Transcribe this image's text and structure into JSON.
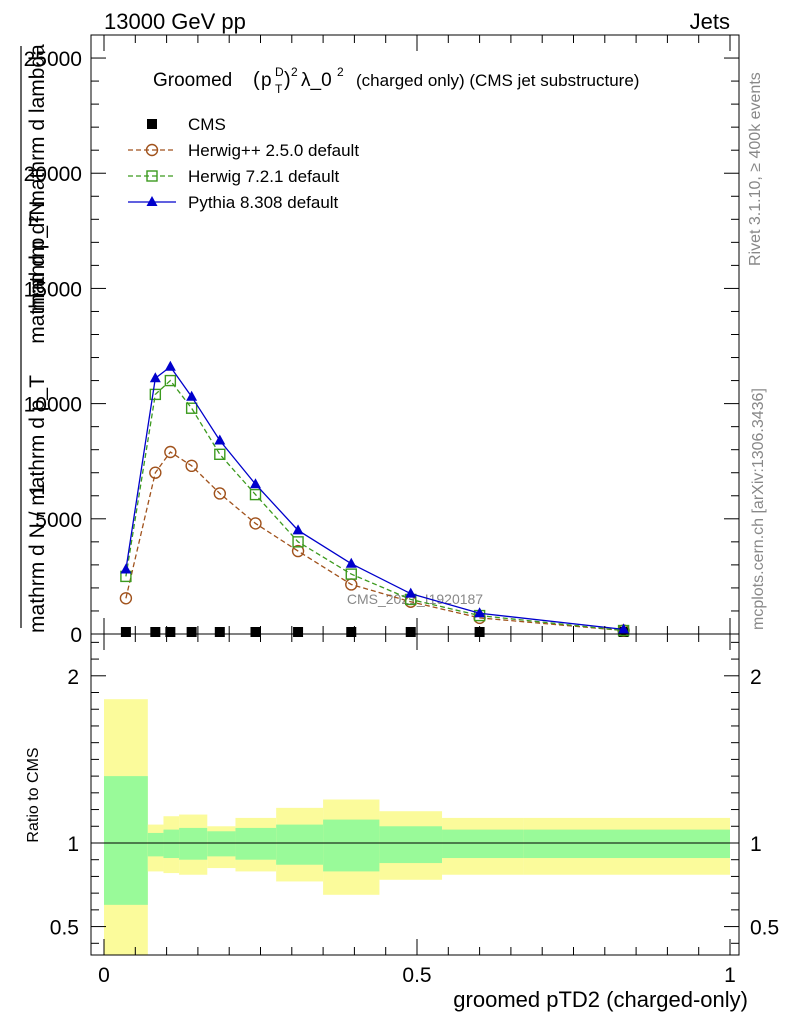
{
  "header": {
    "left": "13000 GeV pp",
    "right": "Jets"
  },
  "side_labels": {
    "rivet": "Rivet 3.1.10, ≥ 400k events",
    "mcplots": "mcplots.cern.ch [arXiv:1306.3436]"
  },
  "watermark": "CMS_2021_I1920187",
  "colors": {
    "cms": "#000000",
    "herwig25": "#a0521c",
    "herwig72": "#3c9a1e",
    "pythia": "#0000cc",
    "band_inner": "#99fa99",
    "band_outer": "#fbfb9b"
  },
  "chart_data": [
    {
      "type": "line",
      "title": "Groomed (p_T^D)^2 λ_0^2 (charged only) (CMS jet substructure)",
      "title_parts": {
        "pre": "Groomed",
        "p": "p",
        "sup_D": "D",
        "sub_T": "T",
        "sup_2": "2",
        "lambda": "λ_0",
        "sup_2b": "2",
        "post": "(charged only) (CMS jet substructure)"
      },
      "ylabel": {
        "frac_top": "mathrm d²N",
        "frac_bottom": "mathrm d p_T mathrm d lambda",
        "sub_T": "T",
        "lead_top": "1",
        "lead_bottom": "mathrm d N / mathrm d p_T"
      },
      "xlim": [
        0,
        1
      ],
      "ylim": [
        0,
        26000
      ],
      "yticks": [
        0,
        5000,
        10000,
        15000,
        20000,
        25000
      ],
      "ytick_labels": [
        "0",
        "5000",
        "10000",
        "15000",
        "20000",
        "25000"
      ],
      "legend": [
        "CMS",
        "Herwig++ 2.5.0 default",
        "Herwig 7.2.1 default",
        "Pythia 8.308 default"
      ],
      "legend_position": "top-left",
      "series": [
        {
          "name": "CMS",
          "x": [
            0.035,
            0.082,
            0.106,
            0.14,
            0.185,
            0.242,
            0.31,
            0.395,
            0.49,
            0.6,
            0.83
          ],
          "y": [
            0,
            0,
            0,
            0,
            0,
            0,
            0,
            0,
            0,
            0,
            0
          ]
        },
        {
          "name": "Herwig++ 2.5.0 default",
          "x": [
            0.035,
            0.082,
            0.106,
            0.14,
            0.185,
            0.242,
            0.31,
            0.395,
            0.49,
            0.6,
            0.83
          ],
          "y": [
            1550,
            7000,
            7900,
            7300,
            6100,
            4800,
            3600,
            2150,
            1400,
            700,
            150
          ]
        },
        {
          "name": "Herwig 7.2.1 default",
          "x": [
            0.035,
            0.082,
            0.106,
            0.14,
            0.185,
            0.242,
            0.31,
            0.395,
            0.49,
            0.6,
            0.83
          ],
          "y": [
            2500,
            10400,
            11000,
            9800,
            7800,
            6050,
            4000,
            2600,
            1500,
            800,
            150
          ]
        },
        {
          "name": "Pythia 8.308 default",
          "x": [
            0.035,
            0.082,
            0.106,
            0.14,
            0.185,
            0.242,
            0.31,
            0.395,
            0.49,
            0.6,
            0.83
          ],
          "y": [
            2800,
            11100,
            11600,
            10300,
            8400,
            6500,
            4500,
            3050,
            1750,
            900,
            200
          ]
        }
      ]
    },
    {
      "type": "area",
      "ylabel": "Ratio to CMS",
      "xlabel": "groomed pTD2 (charged-only)",
      "xlim": [
        0,
        1
      ],
      "ylim": [
        0.33,
        2.25
      ],
      "yticks": [
        0.5,
        1,
        2
      ],
      "ytick_labels": [
        "0.5",
        "1",
        "2"
      ],
      "xticks": [
        0,
        0.5,
        1
      ],
      "xtick_labels": [
        "0",
        "0.5",
        "1"
      ],
      "reference_line": 1,
      "bins": [
        0,
        0.07,
        0.095,
        0.12,
        0.165,
        0.21,
        0.275,
        0.35,
        0.44,
        0.54,
        0.67,
        1.0
      ],
      "inner_band": {
        "low": [
          0.63,
          0.92,
          0.91,
          0.9,
          0.92,
          0.9,
          0.87,
          0.83,
          0.88,
          0.91,
          0.91
        ],
        "high": [
          1.4,
          1.06,
          1.08,
          1.09,
          1.07,
          1.09,
          1.11,
          1.14,
          1.1,
          1.08,
          1.08
        ]
      },
      "outer_band": {
        "low": [
          0.33,
          0.83,
          0.82,
          0.81,
          0.85,
          0.83,
          0.77,
          0.69,
          0.78,
          0.81,
          0.81
        ],
        "high": [
          1.86,
          1.11,
          1.16,
          1.17,
          1.1,
          1.15,
          1.21,
          1.26,
          1.19,
          1.15,
          1.15
        ]
      }
    }
  ]
}
